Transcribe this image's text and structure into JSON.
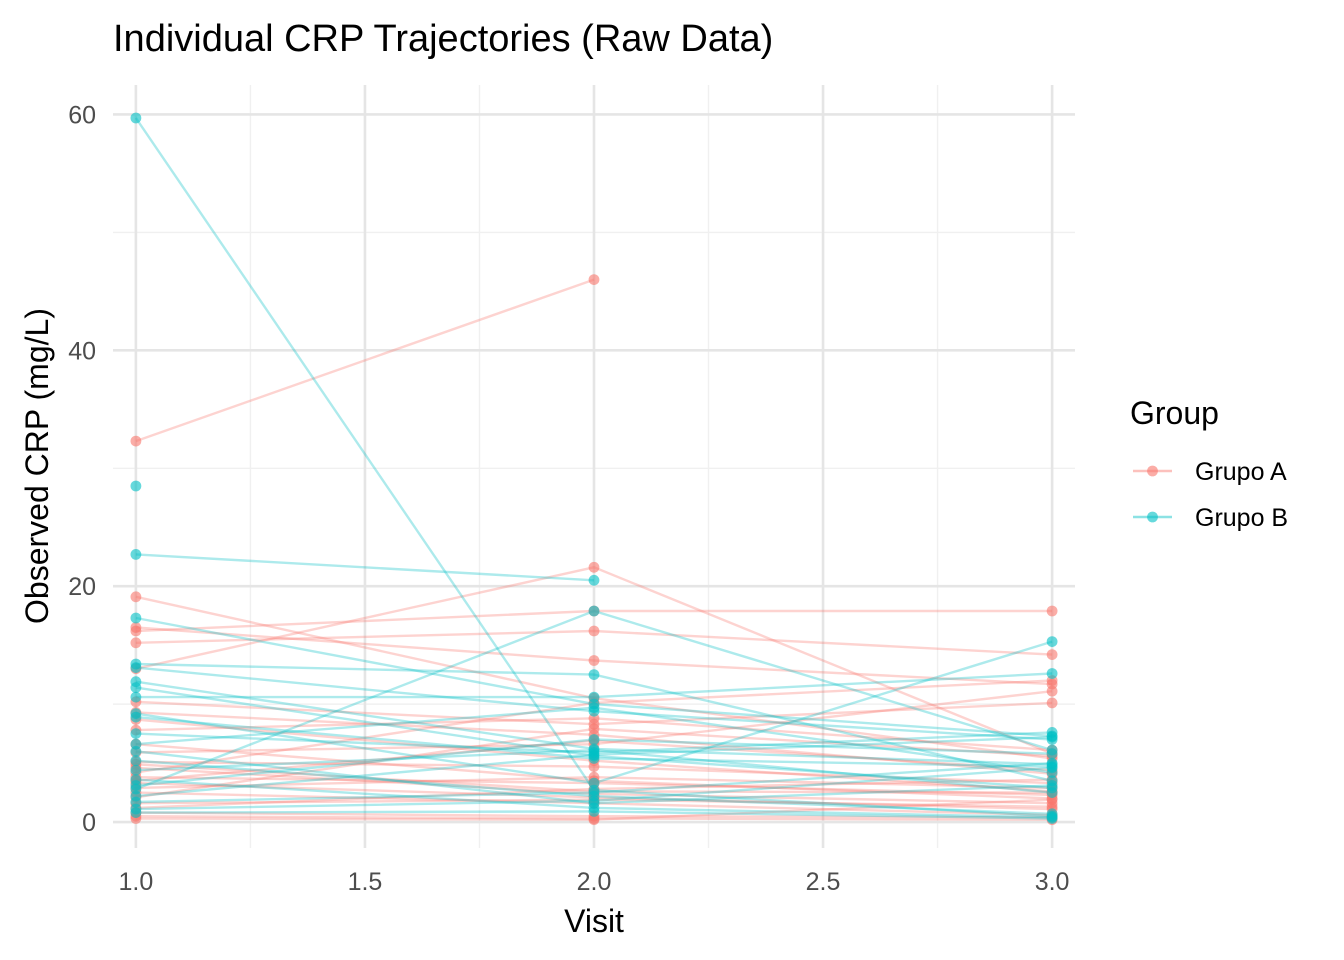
{
  "chart_data": {
    "type": "line",
    "title": "Individual CRP Trajectories (Raw Data)",
    "xlabel": "Visit",
    "ylabel": "Observed CRP (mg/L)",
    "xlim": [
      0.95,
      3.05
    ],
    "ylim": [
      -2.2,
      62.5
    ],
    "x_ticks": [
      1.0,
      1.5,
      2.0,
      2.5,
      3.0
    ],
    "x_tick_labels": [
      "1.0",
      "1.5",
      "2.0",
      "2.5",
      "3.0"
    ],
    "y_ticks": [
      0,
      20,
      40,
      60
    ],
    "y_tick_labels": [
      "0",
      "20",
      "40",
      "60"
    ],
    "grid": true,
    "legend": {
      "title": "Group",
      "position": "right",
      "entries": [
        {
          "name": "Grupo A",
          "color": "#F8766D"
        },
        {
          "name": "Grupo B",
          "color": "#00BFC4"
        }
      ]
    },
    "series": [
      {
        "name": "Grupo A",
        "color": "#F8766D",
        "trajectories": [
          [
            [
              1,
              32.3
            ],
            [
              2,
              46.0
            ]
          ],
          [
            [
              1,
              13.0
            ],
            [
              2,
              21.6
            ],
            [
              3,
              5.8
            ]
          ],
          [
            [
              1,
              19.1
            ],
            [
              2,
              10.5
            ],
            [
              3,
              5.4
            ]
          ],
          [
            [
              1,
              16.5
            ],
            [
              2,
              13.7
            ],
            [
              3,
              11.7
            ]
          ],
          [
            [
              1,
              16.2
            ],
            [
              2,
              17.9
            ],
            [
              3,
              17.9
            ]
          ],
          [
            [
              1,
              15.2
            ],
            [
              2,
              16.2
            ],
            [
              3,
              14.2
            ]
          ],
          [
            [
              1,
              10.2
            ],
            [
              2,
              8.3
            ],
            [
              3,
              10.1
            ]
          ],
          [
            [
              1,
              9.3
            ],
            [
              2,
              7.4
            ],
            [
              3,
              4.1
            ]
          ],
          [
            [
              1,
              8.7
            ],
            [
              2,
              5.2
            ],
            [
              3,
              2.6
            ]
          ],
          [
            [
              1,
              7.8
            ],
            [
              2,
              8.8
            ],
            [
              3,
              6.1
            ]
          ],
          [
            [
              1,
              6.6
            ],
            [
              2,
              3.5
            ],
            [
              3,
              2.0
            ]
          ],
          [
            [
              1,
              5.9
            ],
            [
              2,
              6.6
            ],
            [
              3,
              11.1
            ]
          ],
          [
            [
              1,
              5.1
            ],
            [
              2,
              4.7
            ],
            [
              3,
              3.3
            ]
          ],
          [
            [
              1,
              4.6
            ],
            [
              2,
              2.4
            ],
            [
              3,
              1.6
            ]
          ],
          [
            [
              1,
              4.2
            ],
            [
              2,
              10.1
            ],
            [
              3,
              12.0
            ]
          ],
          [
            [
              1,
              3.8
            ],
            [
              2,
              3.3
            ],
            [
              3,
              2.3
            ]
          ],
          [
            [
              1,
              3.3
            ],
            [
              2,
              2.1
            ],
            [
              3,
              1.1
            ]
          ],
          [
            [
              1,
              2.9
            ],
            [
              2,
              3.8
            ],
            [
              3,
              2.9
            ]
          ],
          [
            [
              1,
              2.5
            ],
            [
              2,
              1.6
            ],
            [
              3,
              0.6
            ]
          ],
          [
            [
              1,
              2.1
            ],
            [
              2,
              7.9
            ],
            [
              3,
              5.6
            ]
          ],
          [
            [
              1,
              1.6
            ],
            [
              2,
              1.9
            ],
            [
              3,
              1.3
            ]
          ],
          [
            [
              1,
              1.2
            ],
            [
              2,
              2.8
            ],
            [
              3,
              3.6
            ]
          ],
          [
            [
              1,
              0.8
            ],
            [
              2,
              0.5
            ],
            [
              3,
              0.4
            ]
          ],
          [
            [
              1,
              0.5
            ],
            [
              2,
              0.3
            ],
            [
              3,
              0.2
            ]
          ],
          [
            [
              1,
              0.3
            ],
            [
              2,
              0.2
            ],
            [
              3,
              1.9
            ]
          ],
          [
            [
              1,
              3.5
            ],
            [
              2,
              6.9
            ],
            [
              3,
              4.4
            ]
          ],
          [
            [
              1,
              4.9
            ],
            [
              2,
              2.6
            ],
            [
              3,
              2.5
            ]
          ]
        ]
      },
      {
        "name": "Grupo B",
        "color": "#00BFC4",
        "trajectories": [
          [
            [
              1,
              59.7
            ],
            [
              2,
              2.7
            ],
            [
              3,
              0.5
            ]
          ],
          [
            [
              1,
              28.5
            ]
          ],
          [
            [
              1,
              22.7
            ],
            [
              2,
              20.5
            ]
          ],
          [
            [
              1,
              17.3
            ],
            [
              2,
              10.0
            ],
            [
              3,
              7.3
            ]
          ],
          [
            [
              1,
              13.4
            ],
            [
              2,
              12.5
            ],
            [
              3,
              3.5
            ]
          ],
          [
            [
              1,
              13.1
            ],
            [
              2,
              9.4
            ],
            [
              3,
              7.0
            ]
          ],
          [
            [
              1,
              11.9
            ],
            [
              2,
              6.2
            ],
            [
              3,
              4.9
            ]
          ],
          [
            [
              1,
              11.4
            ],
            [
              2,
              5.6
            ],
            [
              3,
              2.9
            ]
          ],
          [
            [
              1,
              10.6
            ],
            [
              2,
              10.6
            ],
            [
              3,
              12.6
            ]
          ],
          [
            [
              1,
              9.2
            ],
            [
              2,
              3.3
            ],
            [
              3,
              15.3
            ]
          ],
          [
            [
              1,
              7.5
            ],
            [
              2,
              5.9
            ],
            [
              3,
              7.6
            ]
          ],
          [
            [
              1,
              6.6
            ],
            [
              2,
              9.7
            ],
            [
              3,
              4.2
            ]
          ],
          [
            [
              1,
              6.0
            ],
            [
              2,
              1.6
            ],
            [
              3,
              3.1
            ]
          ],
          [
            [
              1,
              5.2
            ],
            [
              2,
              2.2
            ],
            [
              3,
              0.7
            ]
          ],
          [
            [
              1,
              4.4
            ],
            [
              2,
              6.1
            ],
            [
              3,
              2.5
            ]
          ],
          [
            [
              1,
              3.6
            ],
            [
              2,
              1.2
            ],
            [
              3,
              0.4
            ]
          ],
          [
            [
              1,
              2.8
            ],
            [
              2,
              17.9
            ],
            [
              3,
              6.1
            ]
          ],
          [
            [
              1,
              2.2
            ],
            [
              2,
              5.7
            ],
            [
              3,
              7.2
            ]
          ],
          [
            [
              1,
              1.7
            ],
            [
              2,
              2.5
            ],
            [
              3,
              5.0
            ]
          ],
          [
            [
              1,
              1.1
            ],
            [
              2,
              1.8
            ],
            [
              3,
              4.6
            ]
          ],
          [
            [
              1,
              0.8
            ],
            [
              2,
              0.9
            ],
            [
              3,
              0.3
            ]
          ],
          [
            [
              1,
              8.9
            ],
            [
              2,
              5.4
            ],
            [
              3,
              4.7
            ]
          ],
          [
            [
              1,
              3.1
            ],
            [
              2,
              7.0
            ],
            [
              3,
              5.8
            ]
          ]
        ]
      }
    ]
  }
}
